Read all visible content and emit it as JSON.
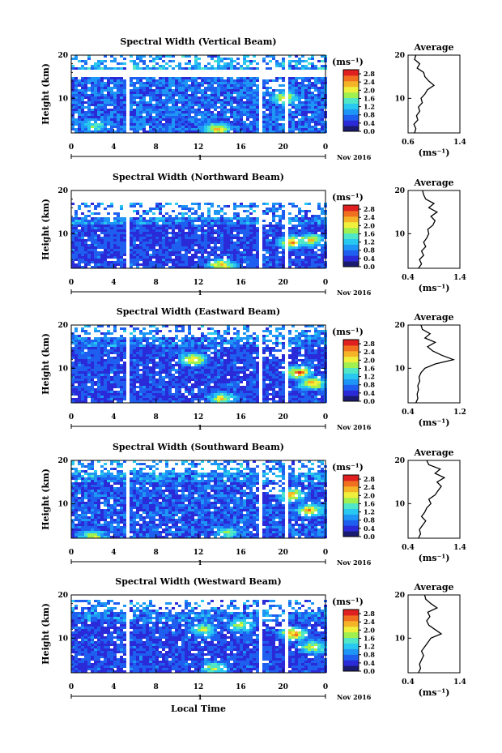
{
  "figure": {
    "xlabel": "Local Time",
    "date_label": "Nov 2016",
    "day_label": "1",
    "ylabel": "Height (km)",
    "unit_label": "(ms⁻¹)",
    "avg_title": "Average",
    "avg_xlabel": "(ms⁻¹)"
  },
  "colorbar": {
    "ticks": [
      "0.0",
      "0.4",
      "0.8",
      "1.2",
      "1.6",
      "2.0",
      "2.4",
      "2.8"
    ],
    "range": [
      0,
      3.0
    ],
    "colors": [
      "#1a1a6e",
      "#2a2ad8",
      "#1e5ff0",
      "#1e96f5",
      "#28c8f0",
      "#50e6c8",
      "#a0f050",
      "#f0f03c",
      "#f5b428",
      "#f07020",
      "#e02020"
    ]
  },
  "chart_data": [
    {
      "type": "heatmap",
      "title": "Spectral Width (Vertical Beam)",
      "x_ticks": [
        "0",
        "4",
        "8",
        "12",
        "16",
        "20",
        "0"
      ],
      "xlim": [
        0,
        24
      ],
      "y_ticks": [
        "10",
        "20"
      ],
      "ylim": [
        2,
        20
      ],
      "gaps": [
        [
          5.3,
          5.5
        ],
        [
          5.7,
          5.9
        ],
        [
          17.6,
          17.9
        ],
        [
          20.3,
          20.6
        ]
      ],
      "background_level": 0.9,
      "upper_limit_km": 19,
      "empty_bands_km": [
        [
          15,
          16.5
        ]
      ],
      "hot_spots": [
        [
          13.8,
          2.8,
          2.2
        ],
        [
          20.2,
          10,
          2.0
        ],
        [
          2.2,
          3.6,
          1.5
        ]
      ],
      "average": {
        "title": "Average",
        "x_ticks": [
          "0.6",
          "1.4"
        ],
        "xlim": [
          0.6,
          1.4
        ],
        "y_ticks": [
          "10",
          "20"
        ],
        "profile": [
          [
            2,
            0.7
          ],
          [
            3,
            0.72
          ],
          [
            4,
            0.69
          ],
          [
            5,
            0.75
          ],
          [
            6,
            0.73
          ],
          [
            7,
            0.78
          ],
          [
            8,
            0.76
          ],
          [
            9,
            0.82
          ],
          [
            10,
            0.8
          ],
          [
            11,
            0.86
          ],
          [
            12,
            0.9
          ],
          [
            13,
            1.0
          ],
          [
            14,
            0.92
          ],
          [
            15,
            0.86
          ],
          [
            16,
            0.84
          ],
          [
            17,
            0.74
          ],
          [
            18,
            0.78
          ],
          [
            19,
            0.7
          ],
          [
            20,
            0.72
          ]
        ]
      }
    },
    {
      "type": "heatmap",
      "title": "Spectral Width (Northward Beam)",
      "x_ticks": [
        "0",
        "4",
        "8",
        "12",
        "16",
        "20",
        "0"
      ],
      "xlim": [
        0,
        24
      ],
      "y_ticks": [
        "10",
        "20"
      ],
      "ylim": [
        2,
        20
      ],
      "gaps": [
        [
          5.3,
          5.5
        ],
        [
          5.7,
          5.9
        ],
        [
          17.6,
          17.9
        ],
        [
          20.3,
          20.6
        ]
      ],
      "background_level": 0.7,
      "upper_limit_km": 16,
      "empty_bands_km": [],
      "hot_spots": [
        [
          20.8,
          8,
          2.4
        ],
        [
          14.2,
          2.6,
          2.2
        ],
        [
          22.5,
          8.5,
          2.0
        ]
      ],
      "average": {
        "title": "Average",
        "x_ticks": [
          "0.4",
          "1.4"
        ],
        "xlim": [
          0.4,
          1.4
        ],
        "y_ticks": [
          "10",
          "20"
        ],
        "profile": [
          [
            2,
            0.6
          ],
          [
            3,
            0.66
          ],
          [
            4,
            0.62
          ],
          [
            5,
            0.7
          ],
          [
            6,
            0.66
          ],
          [
            7,
            0.74
          ],
          [
            8,
            0.7
          ],
          [
            9,
            0.76
          ],
          [
            10,
            0.8
          ],
          [
            11,
            0.78
          ],
          [
            12,
            0.88
          ],
          [
            13,
            0.92
          ],
          [
            14,
            0.84
          ],
          [
            15,
            0.96
          ],
          [
            16,
            0.8
          ],
          [
            17,
            0.9
          ],
          [
            18,
            0.74
          ],
          [
            19,
            0.7
          ],
          [
            20,
            0.68
          ]
        ]
      }
    },
    {
      "type": "heatmap",
      "title": "Spectral Width (Eastward Beam)",
      "x_ticks": [
        "0",
        "4",
        "8",
        "12",
        "16",
        "20",
        "0"
      ],
      "xlim": [
        0,
        24
      ],
      "y_ticks": [
        "10",
        "20"
      ],
      "ylim": [
        2,
        20
      ],
      "gaps": [
        [
          5.3,
          5.5
        ],
        [
          5.7,
          5.9
        ],
        [
          17.6,
          17.9
        ],
        [
          20.3,
          20.6
        ]
      ],
      "background_level": 0.7,
      "upper_limit_km": 19,
      "empty_bands_km": [],
      "hot_spots": [
        [
          11.5,
          12,
          2.2
        ],
        [
          21.5,
          9,
          2.5
        ],
        [
          14.2,
          3.0,
          2.0
        ],
        [
          22.8,
          6.5,
          2.2
        ]
      ],
      "average": {
        "title": "Average",
        "x_ticks": [
          "0.4",
          "1.2"
        ],
        "xlim": [
          0.4,
          1.2
        ],
        "y_ticks": [
          "10",
          "20"
        ],
        "profile": [
          [
            2,
            0.52
          ],
          [
            3,
            0.55
          ],
          [
            4,
            0.54
          ],
          [
            5,
            0.56
          ],
          [
            6,
            0.55
          ],
          [
            7,
            0.58
          ],
          [
            8,
            0.57
          ],
          [
            9,
            0.6
          ],
          [
            10,
            0.66
          ],
          [
            11,
            0.82
          ],
          [
            12,
            1.1
          ],
          [
            13,
            0.92
          ],
          [
            14,
            0.78
          ],
          [
            15,
            0.7
          ],
          [
            16,
            0.82
          ],
          [
            17,
            0.66
          ],
          [
            18,
            0.74
          ],
          [
            19,
            0.62
          ],
          [
            20,
            0.6
          ]
        ]
      }
    },
    {
      "type": "heatmap",
      "title": "Spectral Width (Southward Beam)",
      "x_ticks": [
        "0",
        "4",
        "8",
        "12",
        "16",
        "20",
        "0"
      ],
      "xlim": [
        0,
        24
      ],
      "y_ticks": [
        "10",
        "20"
      ],
      "ylim": [
        2,
        20
      ],
      "gaps": [
        [
          5.3,
          5.5
        ],
        [
          5.7,
          5.9
        ],
        [
          17.6,
          17.9
        ],
        [
          20.3,
          20.6
        ]
      ],
      "background_level": 0.8,
      "upper_limit_km": 19,
      "empty_bands_km": [],
      "hot_spots": [
        [
          20.8,
          12,
          2.3
        ],
        [
          22.5,
          8.5,
          2.2
        ],
        [
          2.0,
          2.4,
          1.8
        ],
        [
          14.8,
          3.2,
          1.6
        ]
      ],
      "average": {
        "title": "Average",
        "x_ticks": [
          "0.4",
          "1.4"
        ],
        "xlim": [
          0.4,
          1.4
        ],
        "y_ticks": [
          "10",
          "20"
        ],
        "profile": [
          [
            2,
            0.6
          ],
          [
            3,
            0.64
          ],
          [
            4,
            0.62
          ],
          [
            5,
            0.68
          ],
          [
            6,
            0.74
          ],
          [
            7,
            0.66
          ],
          [
            8,
            0.72
          ],
          [
            9,
            0.76
          ],
          [
            10,
            0.84
          ],
          [
            11,
            0.8
          ],
          [
            12,
            0.92
          ],
          [
            13,
            0.98
          ],
          [
            14,
            1.04
          ],
          [
            15,
            0.96
          ],
          [
            16,
            1.1
          ],
          [
            17,
            0.92
          ],
          [
            18,
            1.02
          ],
          [
            19,
            0.8
          ],
          [
            20,
            0.76
          ]
        ]
      }
    },
    {
      "type": "heatmap",
      "title": "Spectral Width (Westward Beam)",
      "x_ticks": [
        "0",
        "4",
        "8",
        "12",
        "16",
        "20",
        "0"
      ],
      "xlim": [
        0,
        24
      ],
      "y_ticks": [
        "10",
        "20"
      ],
      "ylim": [
        2,
        20
      ],
      "gaps": [
        [
          5.3,
          5.5
        ],
        [
          5.7,
          5.9
        ],
        [
          17.6,
          17.9
        ],
        [
          20.3,
          20.6
        ]
      ],
      "background_level": 0.7,
      "upper_limit_km": 18,
      "empty_bands_km": [],
      "hot_spots": [
        [
          21.0,
          11,
          2.4
        ],
        [
          22.8,
          8,
          2.0
        ],
        [
          12.5,
          12,
          1.8
        ],
        [
          16.0,
          13,
          1.8
        ],
        [
          13.5,
          3.0,
          1.8
        ]
      ],
      "average": {
        "title": "Average",
        "x_ticks": [
          "0.4",
          "1.4"
        ],
        "xlim": [
          0.4,
          1.4
        ],
        "y_ticks": [
          "10",
          "20"
        ],
        "profile": [
          [
            2,
            0.6
          ],
          [
            3,
            0.64
          ],
          [
            4,
            0.62
          ],
          [
            5,
            0.66
          ],
          [
            6,
            0.7
          ],
          [
            7,
            0.66
          ],
          [
            8,
            0.72
          ],
          [
            9,
            0.78
          ],
          [
            10,
            0.84
          ],
          [
            11,
            1.04
          ],
          [
            12,
            0.92
          ],
          [
            13,
            0.8
          ],
          [
            14,
            0.76
          ],
          [
            15,
            0.82
          ],
          [
            16,
            0.78
          ],
          [
            17,
            0.96
          ],
          [
            18,
            0.84
          ],
          [
            19,
            0.74
          ],
          [
            20,
            0.72
          ]
        ]
      }
    }
  ]
}
